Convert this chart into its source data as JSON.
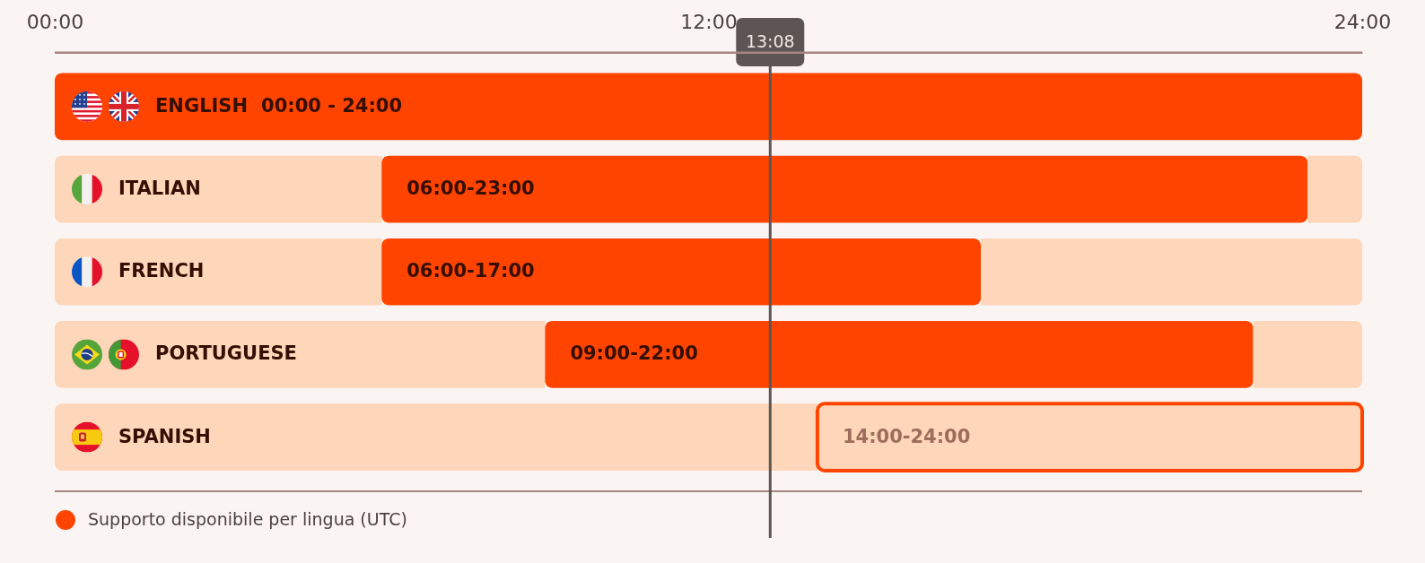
{
  "chart_data": {
    "type": "bar",
    "orientation": "horizontal",
    "stacked": true,
    "categories": [
      "ENGLISH",
      "ITALIAN",
      "FRENCH",
      "PORTUGUESE",
      "SPANISH"
    ],
    "series": [
      {
        "color": "#fed6b9",
        "values": [
          null,
          6,
          6,
          9,
          14
        ]
      },
      {
        "name": "Supporto disponibile per lingua (UTC)",
        "color": "#ff4400",
        "colors": [
          "#ff4400",
          "#ff4400",
          "#ff4400",
          "#ff4400",
          "#fed6b9"
        ],
        "values": [
          24,
          17,
          11,
          13,
          10
        ],
        "value_labels": [
          "00:00 - 24:00",
          "06:00-23:00",
          "06:00-17:00",
          "09:00-22:00",
          "14:00-24:00"
        ]
      },
      {
        "color": "#fed6b9",
        "values": [
          null,
          1,
          7,
          2,
          null
        ]
      }
    ],
    "xlim": [
      0,
      24
    ],
    "xticks": [
      {
        "value": 0,
        "label": "00:00"
      },
      {
        "value": 12,
        "label": "12:00"
      },
      {
        "value": 24,
        "label": "24:00"
      }
    ],
    "ref_lines": [
      {
        "axis": "x",
        "value": 13.133,
        "label": "13:08",
        "color": "#5c5553"
      }
    ],
    "legend": "bottom left"
  }
}
